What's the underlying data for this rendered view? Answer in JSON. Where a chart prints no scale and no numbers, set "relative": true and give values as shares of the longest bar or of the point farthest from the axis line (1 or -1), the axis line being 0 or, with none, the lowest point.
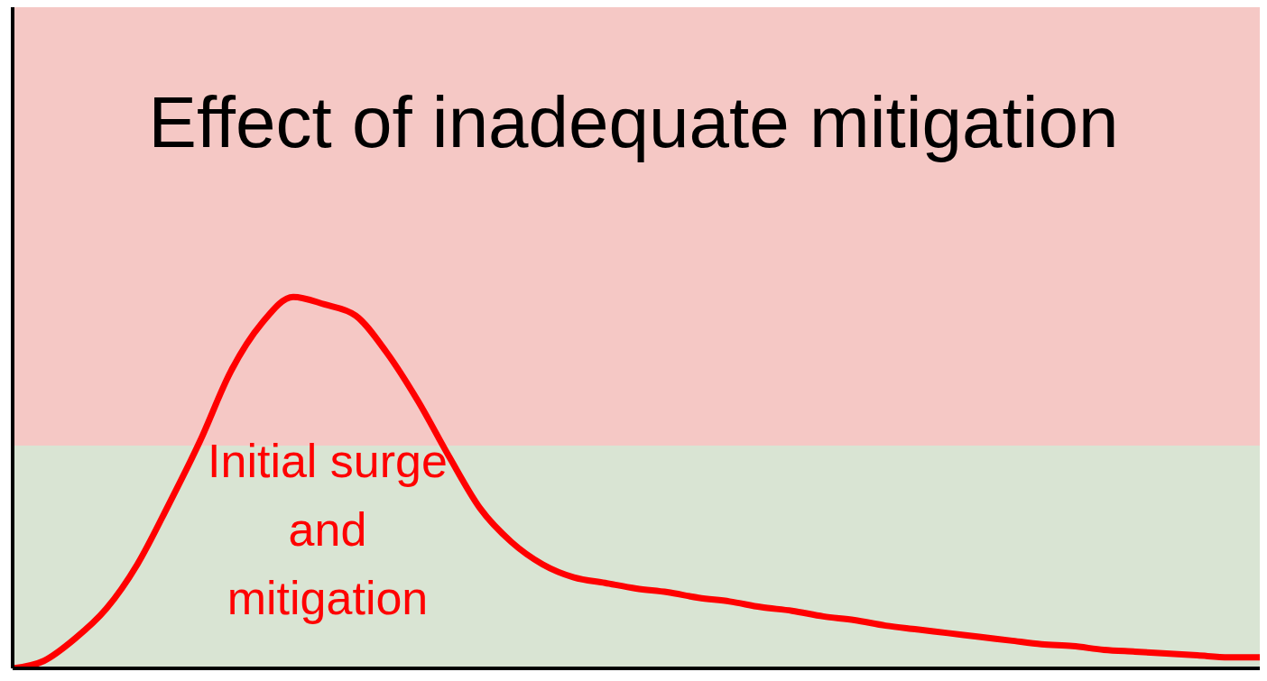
{
  "chart_data": {
    "type": "line",
    "title": "Effect of inadequate mitigation",
    "relative": true,
    "marker": "none",
    "line_style": "solid",
    "categories": [
      null,
      null,
      null,
      null,
      null,
      null,
      null,
      null,
      null,
      null,
      null,
      null,
      null,
      null,
      null,
      null,
      null,
      null,
      null,
      null,
      null,
      null,
      null,
      null,
      null,
      null,
      null,
      null,
      null,
      null,
      null,
      null,
      null,
      null,
      null,
      null,
      null,
      null,
      null,
      null,
      null
    ],
    "series": [
      {
        "color": "#ff0000",
        "values": [
          0,
          0.02,
          0.08,
          0.16,
          0.28,
          0.44,
          0.61,
          0.8,
          0.93,
          1,
          0.98,
          0.95,
          0.85,
          0.72,
          0.57,
          0.43,
          0.34,
          0.28,
          0.245,
          0.23,
          0.215,
          0.205,
          0.19,
          0.18,
          0.165,
          0.155,
          0.14,
          0.13,
          0.115,
          0.105,
          0.095,
          0.085,
          0.075,
          0.065,
          0.06,
          0.05,
          0.045,
          0.04,
          0.035,
          0.03,
          0.03
        ]
      }
    ],
    "bands": [
      {
        "axis": "y",
        "from": 0,
        "to": 0.6,
        "color": "#d9e4d3"
      },
      {
        "axis": "y",
        "from": 0.6,
        "to": 1.78,
        "color": "#f5c8c5"
      }
    ],
    "annotations": [
      "Initial surge and mitigation"
    ]
  }
}
